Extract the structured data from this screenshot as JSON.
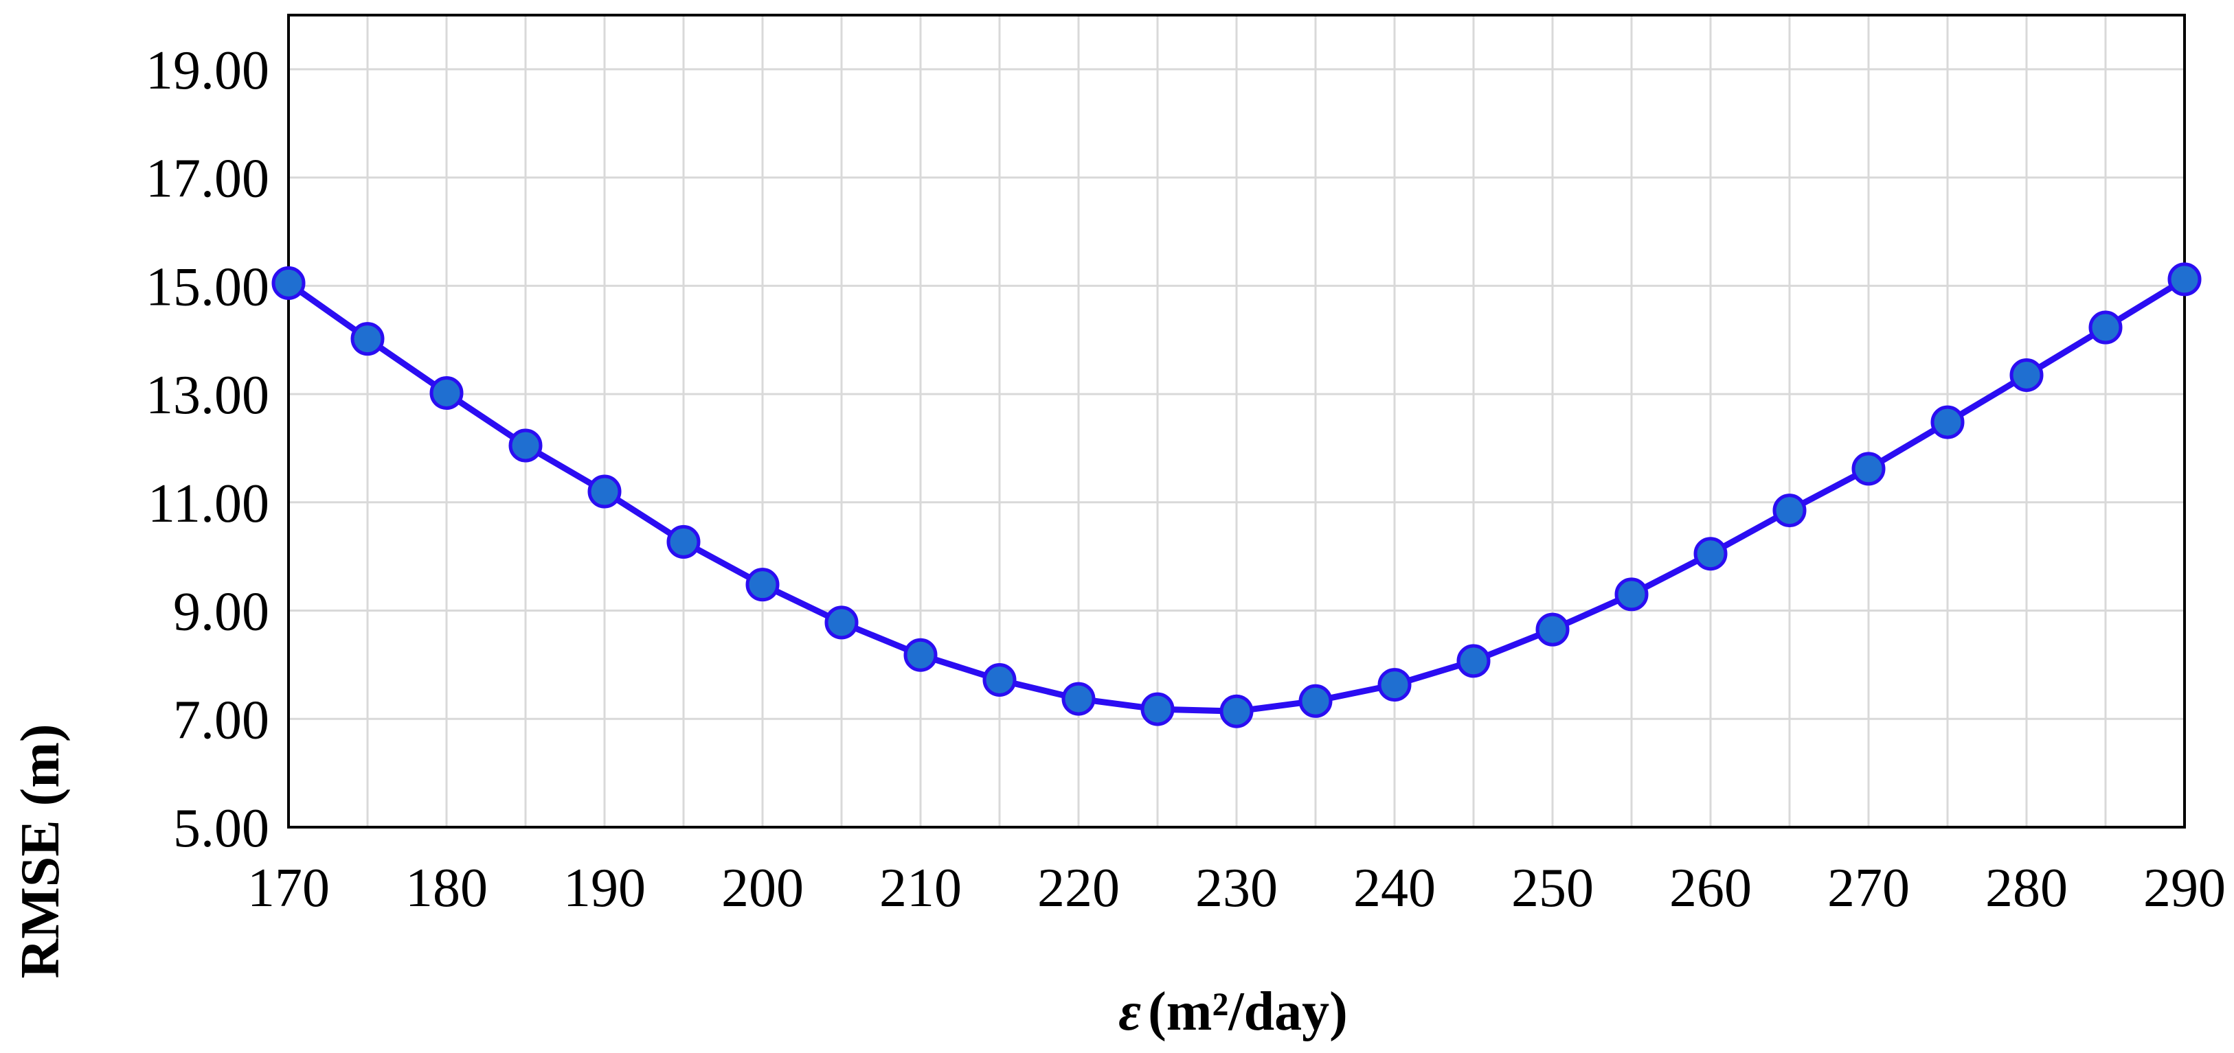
{
  "chart_data": {
    "type": "line",
    "title": "",
    "xlabel": "(m²/day)",
    "xlabel_symbol": "ε",
    "ylabel": "RMSE (m)",
    "xlim": [
      170,
      290
    ],
    "ylim": [
      5,
      20
    ],
    "x_ticks": [
      170,
      180,
      190,
      200,
      210,
      220,
      230,
      240,
      250,
      260,
      270,
      280,
      290
    ],
    "y_ticks": [
      "5.00",
      "7.00",
      "9.00",
      "11.00",
      "13.00",
      "15.00",
      "17.00",
      "19.00"
    ],
    "grid": true,
    "legend": "none",
    "series": [
      {
        "color": "#2b0df2",
        "marker_color": "#1f6fd1",
        "x": [
          170,
          175,
          180,
          185,
          190,
          195,
          200,
          205,
          210,
          215,
          220,
          225,
          230,
          235,
          240,
          245,
          250,
          255,
          260,
          265,
          270,
          275,
          280,
          285,
          290
        ],
        "y": [
          15.05,
          14.02,
          13.02,
          12.05,
          11.2,
          10.27,
          9.48,
          8.78,
          8.18,
          7.72,
          7.37,
          7.18,
          7.14,
          7.33,
          7.63,
          8.07,
          8.65,
          9.3,
          10.05,
          10.85,
          11.62,
          12.48,
          13.35,
          14.23,
          15.12
        ]
      }
    ]
  }
}
